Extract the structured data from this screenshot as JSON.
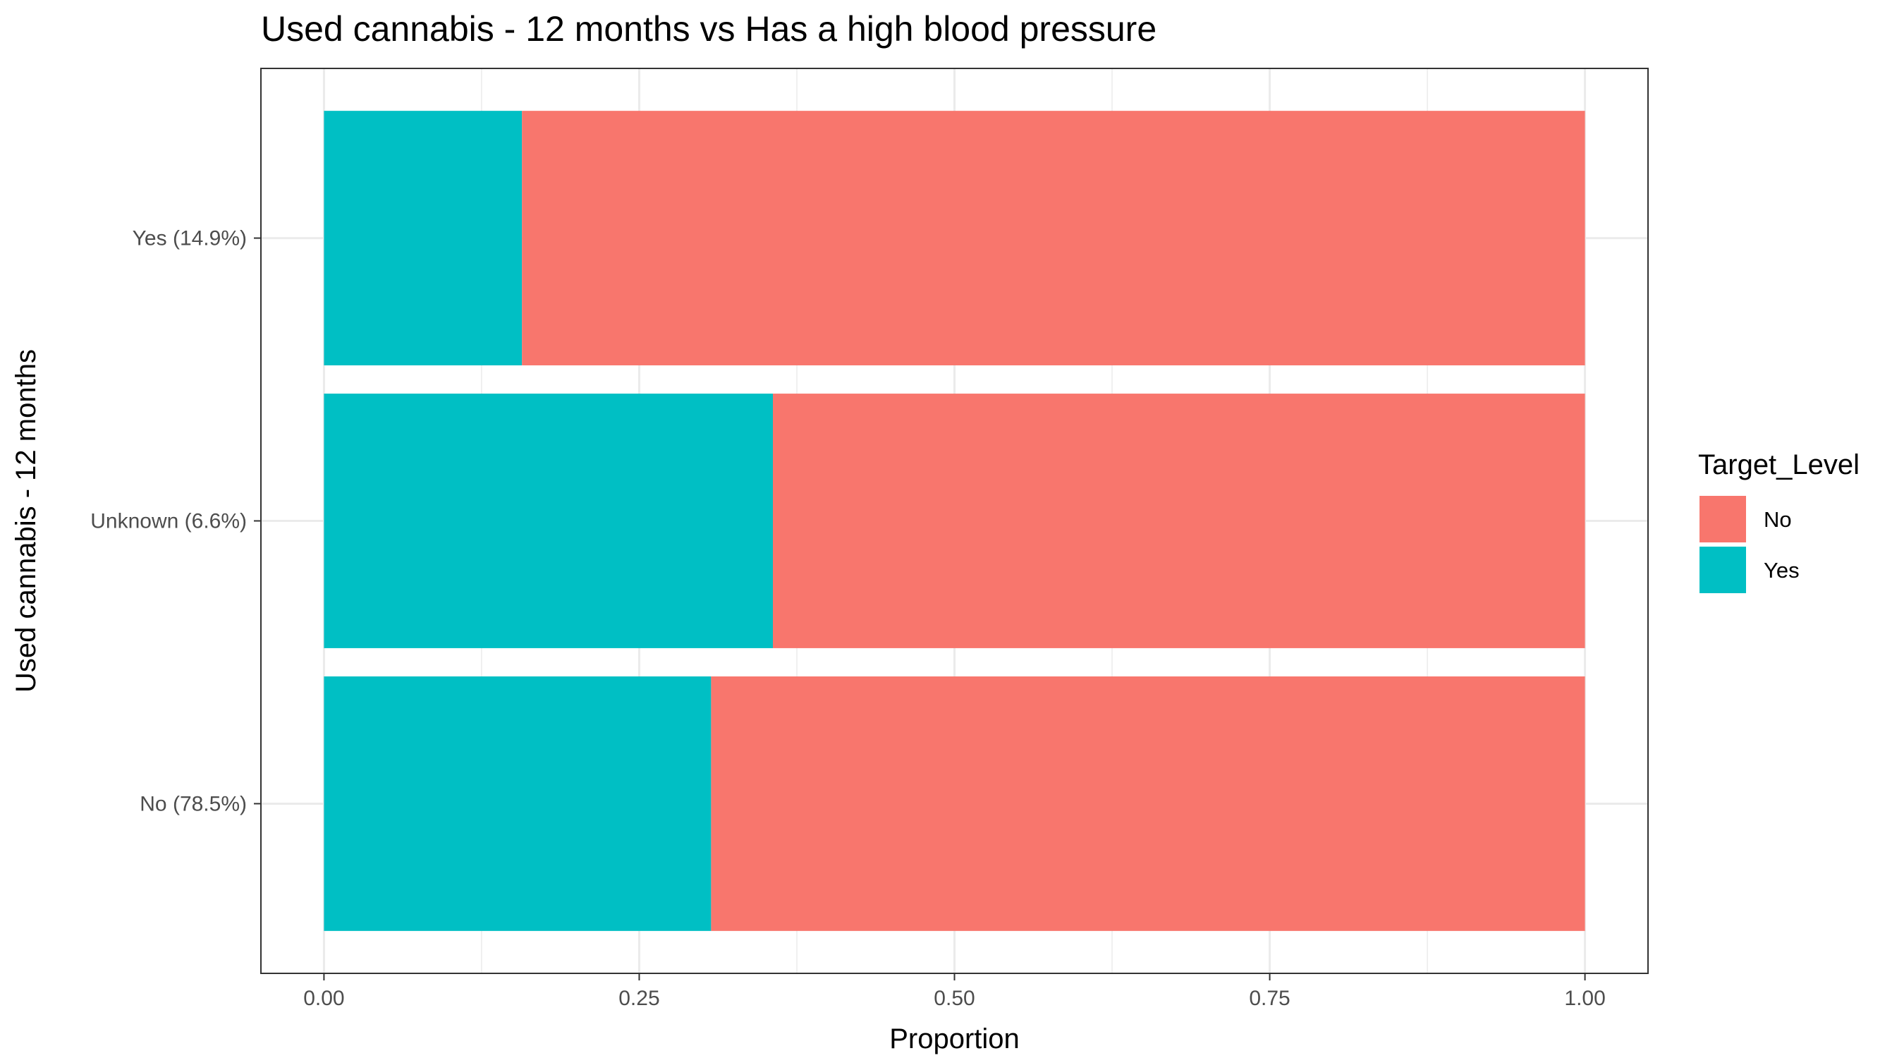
{
  "chart_data": {
    "type": "bar",
    "orientation": "horizontal",
    "stacked": true,
    "title": "Used cannabis - 12 months vs Has a high blood pressure",
    "xlabel": "Proportion",
    "ylabel": "Used cannabis - 12 months",
    "xlim": [
      0,
      1
    ],
    "x_ticks": [
      "0.00",
      "0.25",
      "0.50",
      "0.75",
      "1.00"
    ],
    "categories": [
      "No (78.5%)",
      "Unknown (6.6%)",
      "Yes (14.9%)"
    ],
    "series": [
      {
        "name": "Yes",
        "color": "#00BFC4",
        "values": [
          0.307,
          0.356,
          0.157
        ]
      },
      {
        "name": "No",
        "color": "#F8766D",
        "values": [
          0.693,
          0.644,
          0.843
        ]
      }
    ],
    "legend": {
      "title": "Target_Level",
      "position": "right",
      "entries": [
        {
          "label": "No",
          "color": "#F8766D"
        },
        {
          "label": "Yes",
          "color": "#00BFC4"
        }
      ]
    },
    "grid": true
  }
}
